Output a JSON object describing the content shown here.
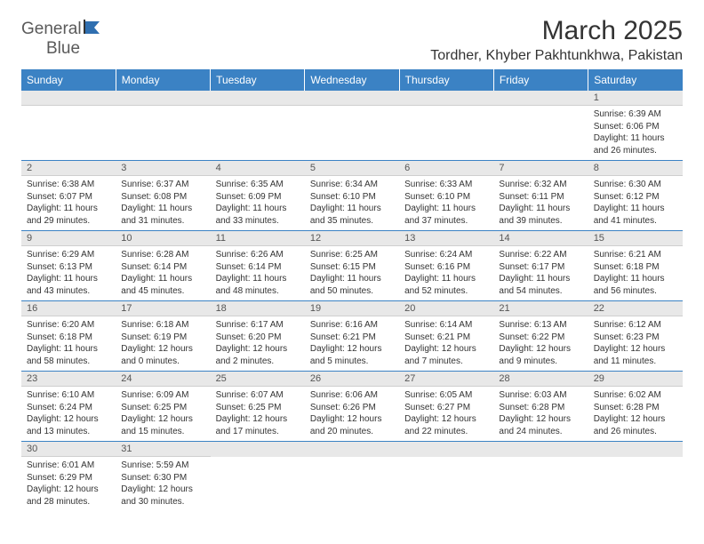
{
  "logo": {
    "general": "General",
    "blue": "Blue"
  },
  "title": "March 2025",
  "location": "Tordher, Khyber Pakhtunkhwa, Pakistan",
  "colors": {
    "header_bg": "#3b82c4",
    "header_text": "#ffffff",
    "daynum_bg": "#e8e8e8",
    "border": "#3b82c4",
    "text": "#333333",
    "logo_gray": "#5a5a5a",
    "logo_blue": "#2f6fb0"
  },
  "daysOfWeek": [
    "Sunday",
    "Monday",
    "Tuesday",
    "Wednesday",
    "Thursday",
    "Friday",
    "Saturday"
  ],
  "weeks": [
    [
      null,
      null,
      null,
      null,
      null,
      null,
      {
        "n": "1",
        "sr": "6:39 AM",
        "ss": "6:06 PM",
        "dl": "11 hours and 26 minutes."
      }
    ],
    [
      {
        "n": "2",
        "sr": "6:38 AM",
        "ss": "6:07 PM",
        "dl": "11 hours and 29 minutes."
      },
      {
        "n": "3",
        "sr": "6:37 AM",
        "ss": "6:08 PM",
        "dl": "11 hours and 31 minutes."
      },
      {
        "n": "4",
        "sr": "6:35 AM",
        "ss": "6:09 PM",
        "dl": "11 hours and 33 minutes."
      },
      {
        "n": "5",
        "sr": "6:34 AM",
        "ss": "6:10 PM",
        "dl": "11 hours and 35 minutes."
      },
      {
        "n": "6",
        "sr": "6:33 AM",
        "ss": "6:10 PM",
        "dl": "11 hours and 37 minutes."
      },
      {
        "n": "7",
        "sr": "6:32 AM",
        "ss": "6:11 PM",
        "dl": "11 hours and 39 minutes."
      },
      {
        "n": "8",
        "sr": "6:30 AM",
        "ss": "6:12 PM",
        "dl": "11 hours and 41 minutes."
      }
    ],
    [
      {
        "n": "9",
        "sr": "6:29 AM",
        "ss": "6:13 PM",
        "dl": "11 hours and 43 minutes."
      },
      {
        "n": "10",
        "sr": "6:28 AM",
        "ss": "6:14 PM",
        "dl": "11 hours and 45 minutes."
      },
      {
        "n": "11",
        "sr": "6:26 AM",
        "ss": "6:14 PM",
        "dl": "11 hours and 48 minutes."
      },
      {
        "n": "12",
        "sr": "6:25 AM",
        "ss": "6:15 PM",
        "dl": "11 hours and 50 minutes."
      },
      {
        "n": "13",
        "sr": "6:24 AM",
        "ss": "6:16 PM",
        "dl": "11 hours and 52 minutes."
      },
      {
        "n": "14",
        "sr": "6:22 AM",
        "ss": "6:17 PM",
        "dl": "11 hours and 54 minutes."
      },
      {
        "n": "15",
        "sr": "6:21 AM",
        "ss": "6:18 PM",
        "dl": "11 hours and 56 minutes."
      }
    ],
    [
      {
        "n": "16",
        "sr": "6:20 AM",
        "ss": "6:18 PM",
        "dl": "11 hours and 58 minutes."
      },
      {
        "n": "17",
        "sr": "6:18 AM",
        "ss": "6:19 PM",
        "dl": "12 hours and 0 minutes."
      },
      {
        "n": "18",
        "sr": "6:17 AM",
        "ss": "6:20 PM",
        "dl": "12 hours and 2 minutes."
      },
      {
        "n": "19",
        "sr": "6:16 AM",
        "ss": "6:21 PM",
        "dl": "12 hours and 5 minutes."
      },
      {
        "n": "20",
        "sr": "6:14 AM",
        "ss": "6:21 PM",
        "dl": "12 hours and 7 minutes."
      },
      {
        "n": "21",
        "sr": "6:13 AM",
        "ss": "6:22 PM",
        "dl": "12 hours and 9 minutes."
      },
      {
        "n": "22",
        "sr": "6:12 AM",
        "ss": "6:23 PM",
        "dl": "12 hours and 11 minutes."
      }
    ],
    [
      {
        "n": "23",
        "sr": "6:10 AM",
        "ss": "6:24 PM",
        "dl": "12 hours and 13 minutes."
      },
      {
        "n": "24",
        "sr": "6:09 AM",
        "ss": "6:25 PM",
        "dl": "12 hours and 15 minutes."
      },
      {
        "n": "25",
        "sr": "6:07 AM",
        "ss": "6:25 PM",
        "dl": "12 hours and 17 minutes."
      },
      {
        "n": "26",
        "sr": "6:06 AM",
        "ss": "6:26 PM",
        "dl": "12 hours and 20 minutes."
      },
      {
        "n": "27",
        "sr": "6:05 AM",
        "ss": "6:27 PM",
        "dl": "12 hours and 22 minutes."
      },
      {
        "n": "28",
        "sr": "6:03 AM",
        "ss": "6:28 PM",
        "dl": "12 hours and 24 minutes."
      },
      {
        "n": "29",
        "sr": "6:02 AM",
        "ss": "6:28 PM",
        "dl": "12 hours and 26 minutes."
      }
    ],
    [
      {
        "n": "30",
        "sr": "6:01 AM",
        "ss": "6:29 PM",
        "dl": "12 hours and 28 minutes."
      },
      {
        "n": "31",
        "sr": "5:59 AM",
        "ss": "6:30 PM",
        "dl": "12 hours and 30 minutes."
      },
      null,
      null,
      null,
      null,
      null
    ]
  ],
  "labels": {
    "sunrise": "Sunrise: ",
    "sunset": "Sunset: ",
    "daylight": "Daylight: "
  }
}
